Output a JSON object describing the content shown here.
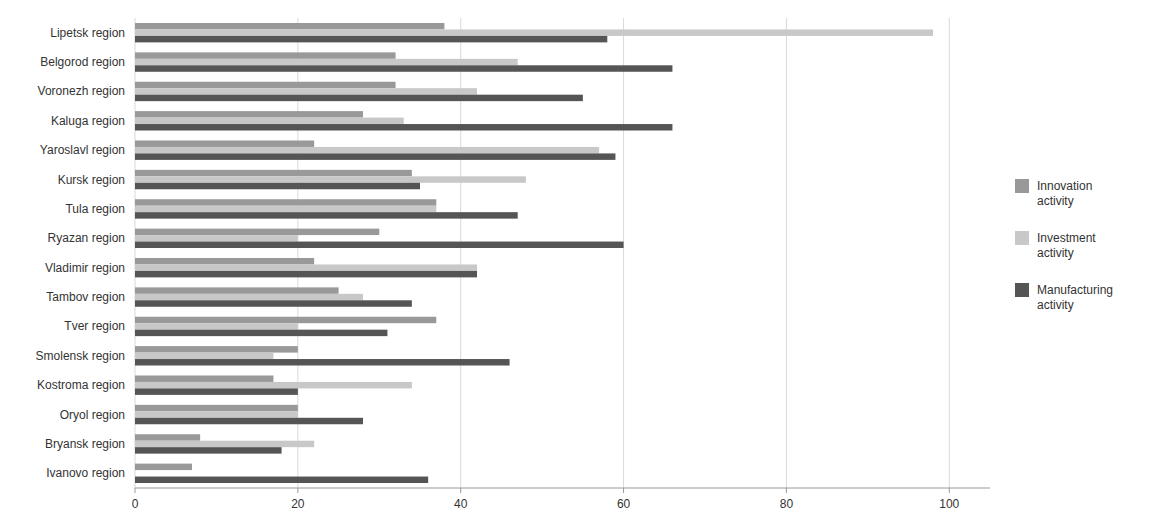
{
  "chart_data": {
    "type": "bar",
    "orientation": "horizontal",
    "categories": [
      "Lipetsk region",
      "Belgorod region",
      "Voronezh region",
      "Kaluga region",
      "Yaroslavl region",
      "Kursk region",
      "Tula region",
      "Ryazan region",
      "Vladimir region",
      "Tambov region",
      "Tver region",
      "Smolensk region",
      "Kostroma region",
      "Oryol region",
      "Bryansk region",
      "Ivanovo region"
    ],
    "series": [
      {
        "name": "Innovation\nactivity",
        "color": "#999999",
        "values": [
          38,
          32,
          32,
          28,
          22,
          34,
          37,
          30,
          22,
          25,
          37,
          20,
          17,
          20,
          8,
          7
        ]
      },
      {
        "name": "Investment\nactivity",
        "color": "#C8C8C8",
        "values": [
          98,
          47,
          42,
          33,
          57,
          48,
          37,
          20,
          42,
          28,
          20,
          17,
          34,
          20,
          22,
          0
        ]
      },
      {
        "name": "Manufacturing\nactivity",
        "color": "#555555",
        "values": [
          58,
          66,
          55,
          66,
          59,
          35,
          47,
          60,
          42,
          34,
          31,
          46,
          20,
          28,
          18,
          36
        ]
      }
    ],
    "xlim": [
      0,
      105
    ],
    "xticks": [
      0,
      20,
      40,
      60,
      80,
      100
    ],
    "grid": true,
    "legend": "right"
  }
}
